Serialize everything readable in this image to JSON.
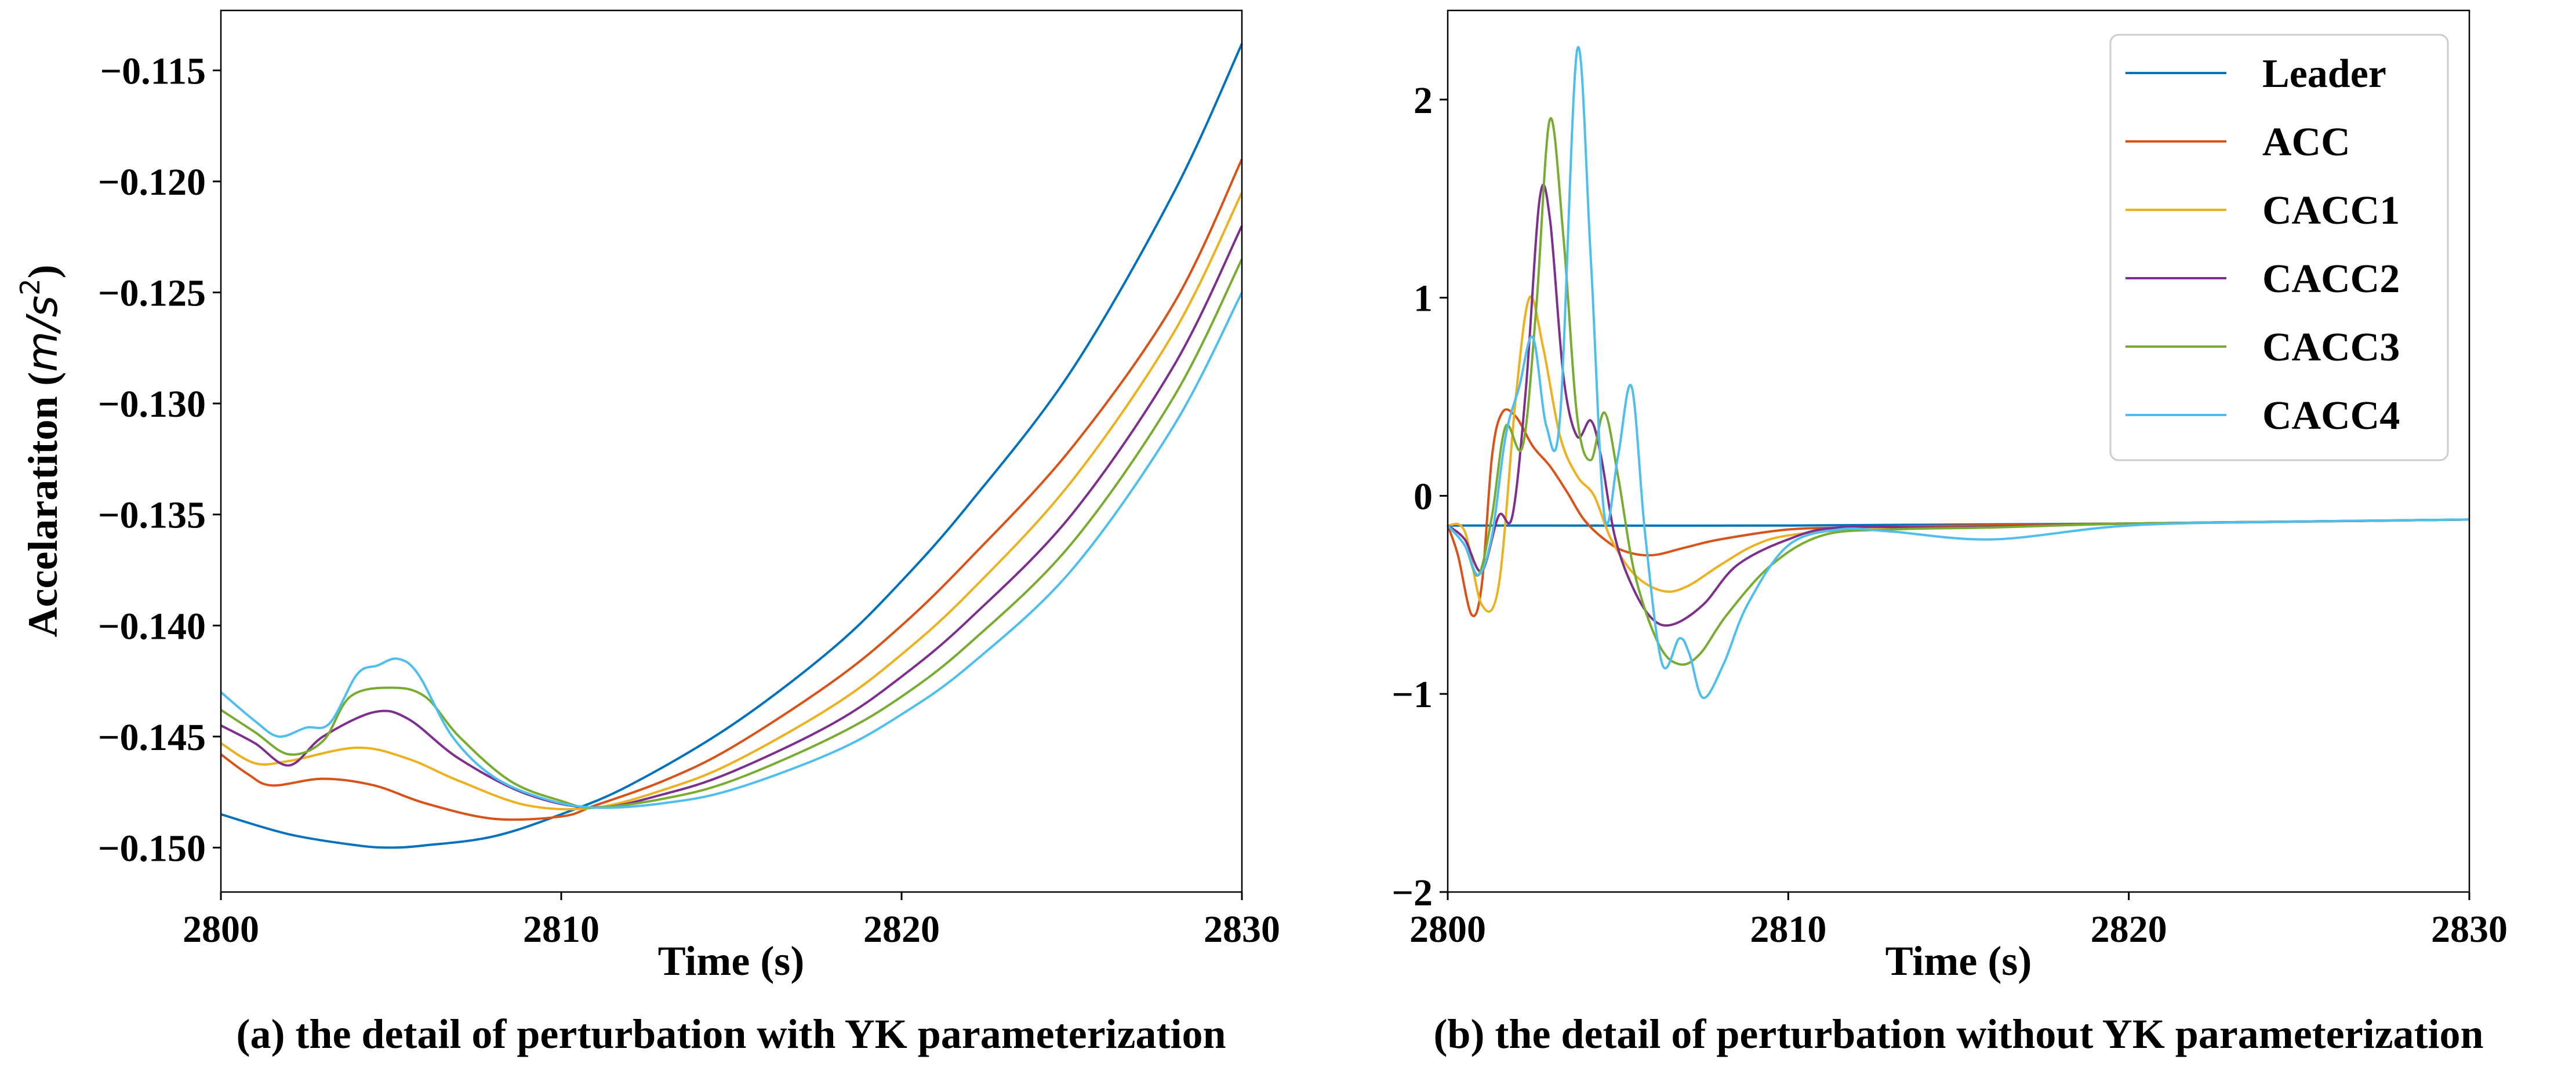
{
  "colors": {
    "Leader": "#0072bd",
    "ACC": "#d95319",
    "CACC1": "#edb120",
    "CACC2": "#7e2f8e",
    "CACC3": "#77ac30",
    "CACC4": "#4dbeee"
  },
  "chart_data": [
    {
      "type": "line",
      "caption": "(a) the detail of perturbation with YK parameterization",
      "xlabel": "Time (s)",
      "ylabel_text": "Accelaratiton (",
      "ylabel_unit": "m/s",
      "ylabel_exp": "2",
      "ylabel_close": ")",
      "xlim": [
        2800,
        2830
      ],
      "ylim": [
        -0.152,
        -0.1123
      ],
      "xticks": [
        2800,
        2810,
        2820,
        2830
      ],
      "xtick_labels": [
        "2800",
        "2810",
        "2820",
        "2830"
      ],
      "yticks": [
        -0.15,
        -0.145,
        -0.14,
        -0.135,
        -0.13,
        -0.125,
        -0.12,
        -0.115
      ],
      "ytick_labels": [
        "−0.150",
        "−0.145",
        "−0.140",
        "−0.135",
        "−0.130",
        "−0.125",
        "−0.120",
        "−0.115"
      ],
      "grid": false,
      "series": [
        {
          "name": "Leader",
          "x": [
            2800,
            2802,
            2804,
            2805,
            2806,
            2808,
            2810,
            2812,
            2815,
            2818,
            2820,
            2822,
            2825,
            2828,
            2830
          ],
          "y": [
            -0.1485,
            -0.1494,
            -0.1499,
            -0.15,
            -0.1499,
            -0.1495,
            -0.1485,
            -0.1472,
            -0.1445,
            -0.141,
            -0.138,
            -0.1345,
            -0.1285,
            -0.1205,
            -0.1138
          ]
        },
        {
          "name": "ACC",
          "x": [
            2800,
            2800.8,
            2801.5,
            2803,
            2804.5,
            2806,
            2808,
            2810,
            2811,
            2813,
            2815,
            2818,
            2820,
            2822,
            2825,
            2828,
            2830
          ],
          "y": [
            -0.1458,
            -0.1467,
            -0.1472,
            -0.1469,
            -0.1472,
            -0.148,
            -0.1487,
            -0.1486,
            -0.1481,
            -0.147,
            -0.1455,
            -0.1425,
            -0.14,
            -0.137,
            -0.132,
            -0.1255,
            -0.119
          ]
        },
        {
          "name": "CACC1",
          "x": [
            2800,
            2801,
            2802,
            2804,
            2805.5,
            2807,
            2809,
            2811,
            2813,
            2815,
            2818,
            2820,
            2822,
            2825,
            2828,
            2830
          ],
          "y": [
            -0.1453,
            -0.1462,
            -0.1461,
            -0.1455,
            -0.146,
            -0.147,
            -0.1481,
            -0.1482,
            -0.1474,
            -0.1462,
            -0.1436,
            -0.1413,
            -0.1385,
            -0.1335,
            -0.1268,
            -0.1205
          ]
        },
        {
          "name": "CACC2",
          "x": [
            2800,
            2801,
            2802,
            2803,
            2804.5,
            2805.5,
            2807,
            2809,
            2811,
            2813,
            2815,
            2818,
            2820,
            2822,
            2825,
            2828,
            2830
          ],
          "y": [
            -0.1445,
            -0.1453,
            -0.1463,
            -0.145,
            -0.1439,
            -0.1442,
            -0.146,
            -0.1476,
            -0.1482,
            -0.1476,
            -0.1466,
            -0.1444,
            -0.1423,
            -0.1397,
            -0.135,
            -0.1283,
            -0.122
          ]
        },
        {
          "name": "CACC3",
          "x": [
            2800,
            2801,
            2802,
            2803,
            2803.8,
            2805,
            2806,
            2807,
            2808.5,
            2810,
            2811,
            2813,
            2815,
            2818,
            2820,
            2822,
            2825,
            2828,
            2830
          ],
          "y": [
            -0.1438,
            -0.1448,
            -0.1458,
            -0.1452,
            -0.1432,
            -0.1428,
            -0.1432,
            -0.145,
            -0.147,
            -0.1479,
            -0.1482,
            -0.1478,
            -0.147,
            -0.145,
            -0.1432,
            -0.1408,
            -0.1363,
            -0.1297,
            -0.1235
          ]
        },
        {
          "name": "CACC4",
          "x": [
            2800,
            2801,
            2801.7,
            2802.5,
            2803.2,
            2804,
            2804.6,
            2805.2,
            2805.8,
            2806.8,
            2808,
            2809.5,
            2811,
            2813,
            2815,
            2818,
            2820,
            2822,
            2825,
            2828,
            2830
          ],
          "y": [
            -0.143,
            -0.1443,
            -0.145,
            -0.1446,
            -0.1444,
            -0.1422,
            -0.1418,
            -0.1415,
            -0.1422,
            -0.145,
            -0.1468,
            -0.1478,
            -0.1482,
            -0.148,
            -0.1474,
            -0.1457,
            -0.144,
            -0.1418,
            -0.1375,
            -0.131,
            -0.125
          ]
        }
      ]
    },
    {
      "type": "line",
      "caption": "(b) the detail of perturbation without YK parameterization",
      "xlabel": "Time (s)",
      "xlim": [
        2800,
        2830
      ],
      "ylim": [
        -2,
        2.45
      ],
      "xticks": [
        2800,
        2810,
        2820,
        2830
      ],
      "xtick_labels": [
        "2800",
        "2810",
        "2820",
        "2830"
      ],
      "yticks": [
        -2,
        -1,
        0,
        1,
        2
      ],
      "ytick_labels": [
        "−2",
        "−1",
        "0",
        "1",
        "2"
      ],
      "grid": false,
      "legend": {
        "position": "top-right",
        "entries": [
          "Leader",
          "ACC",
          "CACC1",
          "CACC2",
          "CACC3",
          "CACC4"
        ]
      },
      "series": [
        {
          "name": "Leader",
          "x": [
            2800,
            2810,
            2820,
            2830
          ],
          "y": [
            -0.15,
            -0.15,
            -0.14,
            -0.12
          ]
        },
        {
          "name": "ACC",
          "x": [
            2800,
            2800.3,
            2800.7,
            2801.0,
            2801.3,
            2801.6,
            2802.0,
            2802.5,
            2803.0,
            2803.5,
            2804.0,
            2804.6,
            2805.2,
            2806,
            2807,
            2808,
            2810,
            2812,
            2815,
            2820,
            2825,
            2830
          ],
          "y": [
            -0.15,
            -0.3,
            -0.6,
            -0.45,
            0.2,
            0.42,
            0.4,
            0.25,
            0.15,
            0.02,
            -0.12,
            -0.22,
            -0.28,
            -0.3,
            -0.26,
            -0.22,
            -0.17,
            -0.16,
            -0.15,
            -0.14,
            -0.13,
            -0.12
          ]
        },
        {
          "name": "CACC1",
          "x": [
            2800,
            2800.5,
            2801.0,
            2801.5,
            2802.0,
            2802.4,
            2802.8,
            2803.3,
            2803.8,
            2804.3,
            2804.8,
            2805.5,
            2806.3,
            2807,
            2808,
            2809,
            2810,
            2812,
            2815,
            2820,
            2825,
            2830
          ],
          "y": [
            -0.15,
            -0.18,
            -0.55,
            -0.45,
            0.5,
            1.0,
            0.75,
            0.3,
            0.1,
            0.0,
            -0.22,
            -0.4,
            -0.48,
            -0.46,
            -0.35,
            -0.25,
            -0.2,
            -0.17,
            -0.16,
            -0.14,
            -0.13,
            -0.12
          ]
        },
        {
          "name": "CACC2",
          "x": [
            2800,
            2800.5,
            2801.0,
            2801.5,
            2801.9,
            2802.3,
            2802.7,
            2803.0,
            2803.4,
            2803.8,
            2804.2,
            2804.5,
            2804.9,
            2805.4,
            2806,
            2806.6,
            2807.5,
            2808.5,
            2810,
            2811.5,
            2815,
            2820,
            2825,
            2830
          ],
          "y": [
            -0.15,
            -0.22,
            -0.38,
            -0.1,
            -0.1,
            0.55,
            1.5,
            1.4,
            0.6,
            0.3,
            0.38,
            0.2,
            -0.2,
            -0.45,
            -0.62,
            -0.65,
            -0.55,
            -0.35,
            -0.22,
            -0.16,
            -0.16,
            -0.14,
            -0.13,
            -0.12
          ]
        },
        {
          "name": "CACC3",
          "x": [
            2800,
            2800.5,
            2800.9,
            2801.3,
            2801.7,
            2802.2,
            2802.6,
            2803.0,
            2803.4,
            2803.8,
            2804.2,
            2804.6,
            2805.0,
            2805.5,
            2806.2,
            2806.8,
            2807.4,
            2808.2,
            2809.5,
            2811,
            2813,
            2816,
            2820,
            2825,
            2830
          ],
          "y": [
            -0.15,
            -0.25,
            -0.4,
            -0.1,
            0.35,
            0.25,
            0.95,
            1.9,
            1.3,
            0.4,
            0.18,
            0.42,
            0.1,
            -0.4,
            -0.75,
            -0.85,
            -0.8,
            -0.6,
            -0.35,
            -0.2,
            -0.17,
            -0.16,
            -0.14,
            -0.13,
            -0.12
          ]
        },
        {
          "name": "CACC4",
          "x": [
            2800,
            2800.5,
            2800.9,
            2801.3,
            2801.7,
            2802.1,
            2802.5,
            2802.9,
            2803.3,
            2803.8,
            2804.2,
            2804.6,
            2805.0,
            2805.4,
            2805.8,
            2806.3,
            2806.8,
            2807.1,
            2807.5,
            2808.1,
            2808.8,
            2810,
            2811.5,
            2813,
            2816,
            2820,
            2825,
            2830
          ],
          "y": [
            -0.15,
            -0.25,
            -0.4,
            -0.2,
            0.3,
            0.55,
            0.8,
            0.35,
            0.4,
            2.25,
            1.2,
            -0.1,
            0.2,
            0.55,
            -0.2,
            -0.85,
            -0.72,
            -0.8,
            -1.02,
            -0.85,
            -0.55,
            -0.25,
            -0.17,
            -0.18,
            -0.22,
            -0.15,
            -0.13,
            -0.12
          ]
        }
      ]
    }
  ]
}
